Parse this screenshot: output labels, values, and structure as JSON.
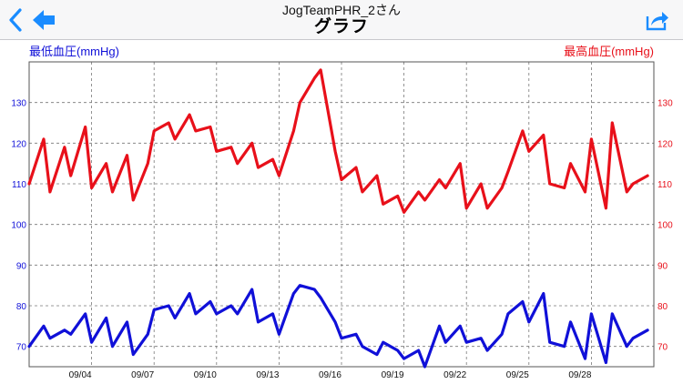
{
  "header": {
    "subtitle": "JogTeamPHR_2さん",
    "title": "グラフ",
    "back_icon": "chevron-left-icon",
    "arrow_icon": "arrow-left-icon",
    "share_icon": "share-icon",
    "accent_color": "#1a8cff"
  },
  "chart_data": {
    "type": "line",
    "left_axis_label": "最低血圧(mmHg)",
    "right_axis_label": "最高血圧(mmHg)",
    "ylim": [
      65,
      140
    ],
    "y_ticks": [
      70,
      80,
      90,
      100,
      110,
      120,
      130
    ],
    "x_range": [
      "2014-09-01",
      "2014-09-31"
    ],
    "x_ticks": [
      "09/04",
      "09/07",
      "09/10",
      "09/13",
      "09/16",
      "09/19",
      "09/22",
      "09/25",
      "09/28"
    ],
    "series": [
      {
        "name": "最高血圧(mmHg)",
        "axis": "right",
        "color": "#e8101a",
        "x": [
          1,
          1.7,
          2,
          2.7,
          3,
          3.7,
          4,
          4.7,
          5,
          5.7,
          6,
          6.7,
          7,
          7.7,
          8,
          8.7,
          9,
          9.7,
          10,
          10.7,
          11,
          11.7,
          12,
          12.7,
          13,
          13.7,
          14,
          14.7,
          15,
          15.7,
          16,
          16.7,
          17,
          17.7,
          18,
          18.7,
          19,
          19.7,
          20,
          20.7,
          21,
          21.7,
          22,
          22.7,
          23,
          23.7,
          24,
          24.7,
          25,
          25.7,
          26,
          26.7,
          27,
          27.7,
          28,
          28.7,
          29,
          29.7,
          30,
          30.7
        ],
        "values": [
          110,
          121,
          108,
          119,
          112,
          124,
          109,
          115,
          108,
          117,
          106,
          115,
          123,
          125,
          121,
          127,
          123,
          124,
          118,
          119,
          115,
          120,
          114,
          116,
          112,
          123,
          130,
          136,
          138,
          118,
          111,
          114,
          108,
          112,
          105,
          107,
          103,
          108,
          106,
          111,
          109,
          115,
          104,
          110,
          104,
          109,
          113,
          123,
          118,
          122,
          110,
          109,
          115,
          108,
          121,
          104,
          125,
          108,
          110,
          112
        ],
        "visible_until": 30.7
      },
      {
        "name": "最低血圧(mmHg)",
        "axis": "left",
        "color": "#1010d8",
        "x": [
          1,
          1.7,
          2,
          2.7,
          3,
          3.7,
          4,
          4.7,
          5,
          5.7,
          6,
          6.7,
          7,
          7.7,
          8,
          8.7,
          9,
          9.7,
          10,
          10.7,
          11,
          11.7,
          12,
          12.7,
          13,
          13.7,
          14,
          14.7,
          15,
          15.7,
          16,
          16.7,
          17,
          17.7,
          18,
          18.7,
          19,
          19.7,
          20,
          20.7,
          21,
          21.7,
          22,
          22.7,
          23,
          23.7,
          24,
          24.7,
          25,
          25.7,
          26,
          26.7,
          27,
          27.7,
          28,
          28.7,
          29,
          29.7,
          30,
          30.7
        ],
        "values": [
          70,
          75,
          72,
          74,
          73,
          78,
          71,
          77,
          70,
          76,
          68,
          73,
          79,
          80,
          77,
          83,
          78,
          81,
          78,
          80,
          78,
          84,
          76,
          78,
          73,
          83,
          85,
          84,
          82,
          76,
          72,
          73,
          70,
          68,
          71,
          69,
          67,
          69,
          65,
          75,
          71,
          75,
          71,
          72,
          69,
          73,
          78,
          81,
          76,
          83,
          71,
          70,
          76,
          67,
          78,
          66,
          78,
          70,
          72,
          74
        ]
      }
    ]
  }
}
